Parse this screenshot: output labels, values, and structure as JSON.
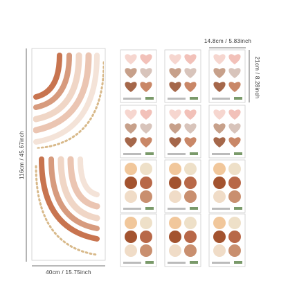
{
  "dimensions": {
    "height": "116cm / 45.67inch",
    "width": "40cm / 15.75inch",
    "sheet_width": "14.8cm / 5.83inch",
    "sheet_height": "21cm / 8.28inch"
  }
}
